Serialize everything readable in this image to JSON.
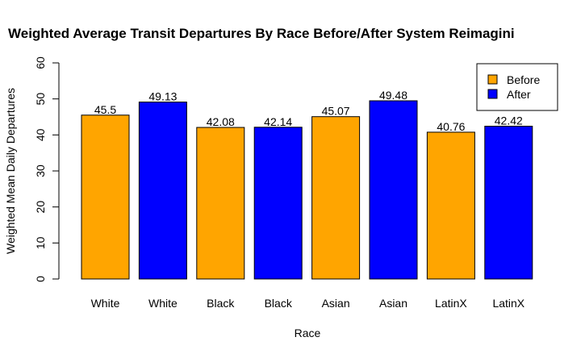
{
  "chart_data": {
    "type": "bar",
    "title": "Weighted Average Transit Departures By Race Before/After System Reimagini",
    "xlabel": "Race",
    "ylabel": "Weighted Mean Daily Departures",
    "ylim": [
      0,
      60
    ],
    "yticks": [
      "0",
      "10",
      "20",
      "30",
      "40",
      "50",
      "60"
    ],
    "categories": [
      "White",
      "White",
      "Black",
      "Black",
      "Asian",
      "Asian",
      "LatinX",
      "LatinX"
    ],
    "values": [
      45.5,
      49.13,
      42.08,
      42.14,
      45.07,
      49.48,
      40.76,
      42.42
    ],
    "value_labels": [
      "45.5",
      "49.13",
      "42.08",
      "42.14",
      "45.07",
      "49.48",
      "40.76",
      "42.42"
    ],
    "bar_groups": [
      "Before",
      "After",
      "Before",
      "After",
      "Before",
      "After",
      "Before",
      "After"
    ],
    "legend": {
      "position": "top-right",
      "items": [
        {
          "name": "Before",
          "color": "#FFA500"
        },
        {
          "name": "After",
          "color": "#0000FF"
        }
      ]
    },
    "colors": {
      "Before": "#FFA500",
      "After": "#0000FF"
    },
    "grid": false
  }
}
